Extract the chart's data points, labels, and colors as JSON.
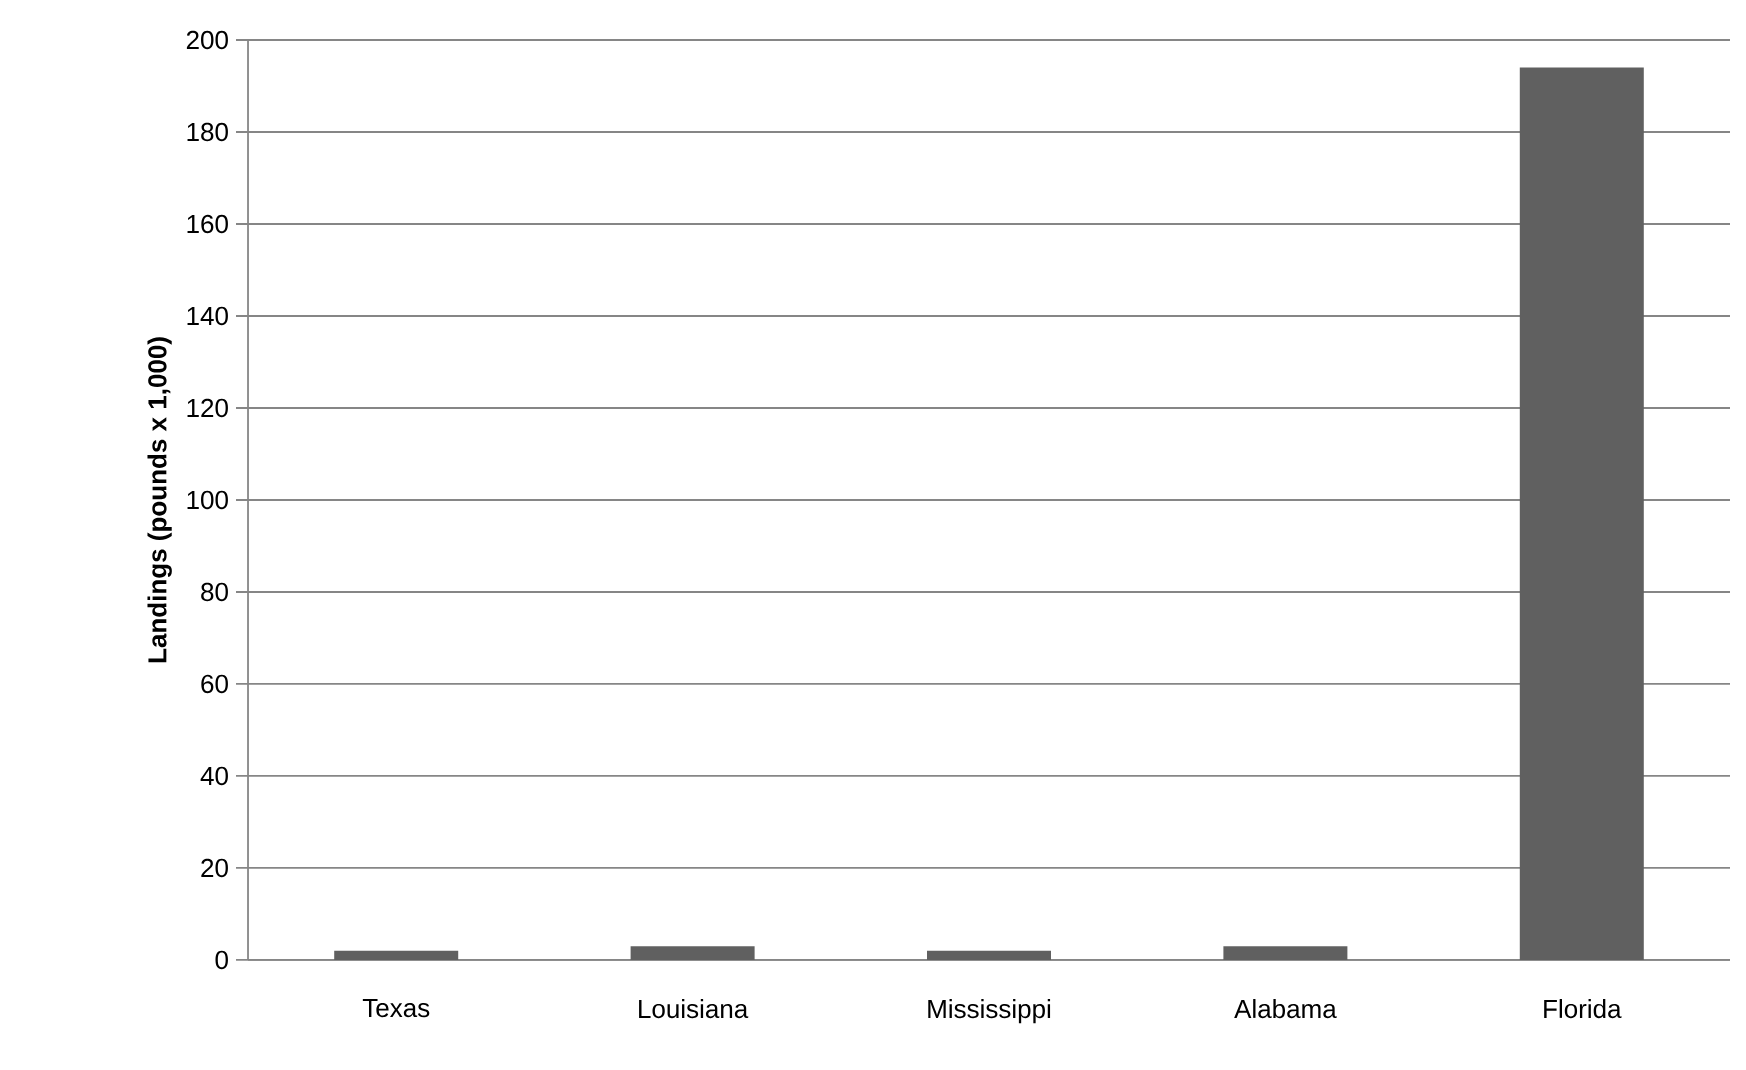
{
  "chart_data": {
    "type": "bar",
    "ylabel": "Landings (pounds x 1,000)",
    "categories": [
      "Texas",
      "Louisiana",
      "Mississippi",
      "Alabama",
      "Florida"
    ],
    "values": [
      2,
      3,
      2,
      3,
      194
    ],
    "color": "#606060",
    "ylim": [
      0,
      200
    ],
    "yticks": [
      0,
      20,
      40,
      60,
      80,
      100,
      120,
      140,
      160,
      180,
      200
    ],
    "grid": "y"
  }
}
